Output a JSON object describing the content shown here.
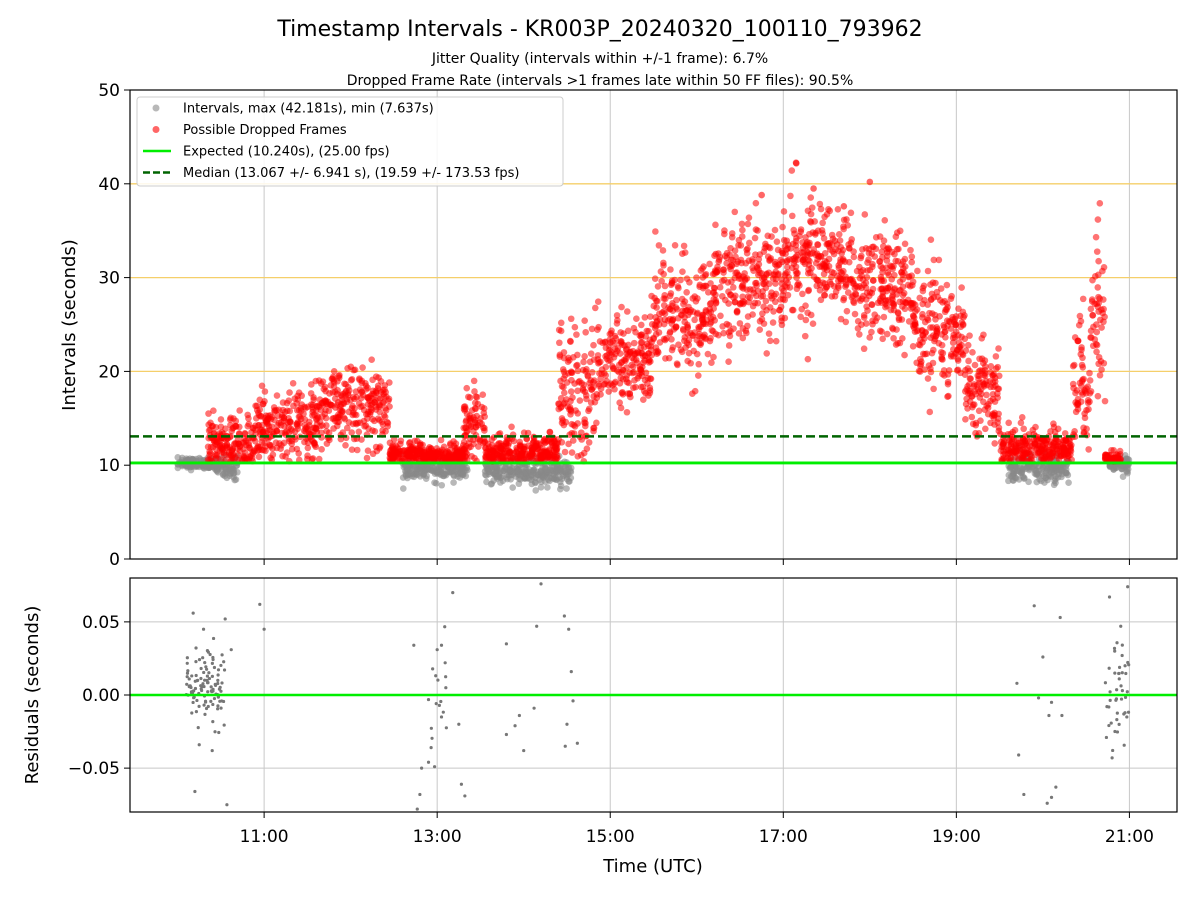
{
  "chart_data": [
    {
      "type": "scatter",
      "title": "Timestamp Intervals - KR003P_20240320_100110_793962",
      "subtitles": [
        "Jitter Quality (intervals within +/-1 frame): 6.7%",
        "Dropped Frame Rate (intervals >1 frames late within 50 FF files): 90.5%"
      ],
      "ylabel": "Intervals (seconds)",
      "xlim_hours": [
        9.45,
        21.55
      ],
      "ylim": [
        0,
        50
      ],
      "yticks": [
        0,
        10,
        20,
        30,
        40,
        50
      ],
      "ytick_labels": [
        "0",
        "10",
        "20",
        "30",
        "40",
        "50"
      ],
      "xticks_hours": [
        11,
        13,
        15,
        17,
        19,
        21
      ],
      "grid": true,
      "reference_bands": [
        20,
        30,
        40
      ],
      "legend_position": "top-left",
      "expected_value": 10.24,
      "median_value": 13.067,
      "series": [
        {
          "name": "Intervals, max (42.181s), min (7.637s)",
          "color": "#888888",
          "role": "all-intervals",
          "segments": [
            {
              "x0": 10.0,
              "x1": 10.45,
              "ymean": 10.2,
              "ysd": 0.3
            },
            {
              "x0": 10.45,
              "x1": 10.7,
              "ymean": 9.8,
              "ysd": 0.6
            },
            {
              "x0": 12.6,
              "x1": 13.35,
              "ymean": 9.6,
              "ysd": 0.6
            },
            {
              "x0": 13.55,
              "x1": 14.55,
              "ymean": 9.3,
              "ysd": 0.7
            },
            {
              "x0": 19.6,
              "x1": 20.3,
              "ymean": 9.6,
              "ysd": 0.7
            },
            {
              "x0": 20.75,
              "x1": 21.0,
              "ymean": 10.2,
              "ysd": 0.5
            }
          ]
        },
        {
          "name": "Possible Dropped Frames",
          "color": "#ff0000",
          "role": "dropped",
          "segments": [
            {
              "x0": 10.35,
              "x1": 10.9,
              "ymean": 12.3,
              "ysd": 1.5
            },
            {
              "x0": 10.9,
              "x1": 11.6,
              "ymean": 14.2,
              "ysd": 2.0
            },
            {
              "x0": 11.6,
              "x1": 12.45,
              "ymean": 16.0,
              "ysd": 2.0
            },
            {
              "x0": 12.45,
              "x1": 13.35,
              "ymean": 11.0,
              "ysd": 0.7
            },
            {
              "x0": 13.3,
              "x1": 13.55,
              "ymean": 14.5,
              "ysd": 1.8
            },
            {
              "x0": 13.55,
              "x1": 14.4,
              "ymean": 11.3,
              "ysd": 1.0
            },
            {
              "x0": 14.4,
              "x1": 14.85,
              "ymean": 18.0,
              "ysd": 3.5
            },
            {
              "x0": 14.85,
              "x1": 15.5,
              "ymean": 21.5,
              "ysd": 2.5
            },
            {
              "x0": 15.5,
              "x1": 16.2,
              "ymean": 26.0,
              "ysd": 3.0
            },
            {
              "x0": 16.2,
              "x1": 17.0,
              "ymean": 29.5,
              "ysd": 3.0
            },
            {
              "x0": 17.0,
              "x1": 17.8,
              "ymean": 31.5,
              "ysd": 3.0
            },
            {
              "x0": 17.8,
              "x1": 18.5,
              "ymean": 29.0,
              "ysd": 3.0
            },
            {
              "x0": 18.5,
              "x1": 19.1,
              "ymean": 24.5,
              "ysd": 3.0
            },
            {
              "x0": 19.1,
              "x1": 19.5,
              "ymean": 18.0,
              "ysd": 2.5
            },
            {
              "x0": 19.5,
              "x1": 20.35,
              "ymean": 11.8,
              "ysd": 1.0
            },
            {
              "x0": 20.35,
              "x1": 20.55,
              "ymean": 18.0,
              "ysd": 4.0
            },
            {
              "x0": 20.55,
              "x1": 20.72,
              "ymean": 26.0,
              "ysd": 4.0
            },
            {
              "x0": 20.72,
              "x1": 20.9,
              "ymean": 10.5,
              "ysd": 0.3
            }
          ]
        },
        {
          "name": "Expected (10.240s), (25.00 fps)",
          "color": "#00ee00",
          "role": "expected-line",
          "y": 10.24
        },
        {
          "name": "Median (13.067 +/- 6.941 s), (19.59 +/- 173.53 fps)",
          "color": "#006400",
          "role": "median-line",
          "y": 13.067
        }
      ]
    },
    {
      "type": "scatter",
      "ylabel": "Residuals (seconds)",
      "xlabel": "Time (UTC)",
      "xlim_hours": [
        9.45,
        21.55
      ],
      "ylim": [
        -0.08,
        0.08
      ],
      "yticks": [
        -0.05,
        0,
        0.05
      ],
      "ytick_labels": [
        "−0.05",
        "0.00",
        "0.05"
      ],
      "xticks_hours": [
        11,
        13,
        15,
        17,
        19,
        21
      ],
      "xtick_labels": [
        "11:00",
        "13:00",
        "15:00",
        "17:00",
        "19:00",
        "21:00"
      ],
      "grid": true,
      "zero_line_color": "#00ee00",
      "series": [
        {
          "name": "residuals",
          "color": "#777777",
          "points": [
            [
              10.18,
              0.056
            ],
            [
              10.2,
              -0.066
            ],
            [
              10.25,
              -0.034
            ],
            [
              10.3,
              0.045
            ],
            [
              10.4,
              -0.038
            ],
            [
              10.55,
              0.052
            ],
            [
              10.57,
              -0.075
            ],
            [
              10.62,
              0.031
            ],
            [
              10.95,
              0.062
            ],
            [
              11.0,
              0.045
            ],
            [
              12.73,
              0.034
            ],
            [
              12.77,
              -0.078
            ],
            [
              12.8,
              -0.068
            ],
            [
              12.82,
              -0.05
            ],
            [
              12.9,
              -0.046
            ],
            [
              12.93,
              -0.036
            ],
            [
              12.97,
              -0.049
            ],
            [
              13.0,
              0.031
            ],
            [
              13.05,
              0.034
            ],
            [
              13.1,
              0.005
            ],
            [
              13.05,
              -0.015
            ],
            [
              13.18,
              0.07
            ],
            [
              13.25,
              -0.02
            ],
            [
              13.28,
              -0.061
            ],
            [
              13.32,
              -0.069
            ],
            [
              13.8,
              0.035
            ],
            [
              13.8,
              -0.027
            ],
            [
              13.9,
              -0.021
            ],
            [
              13.95,
              -0.014
            ],
            [
              14.0,
              -0.038
            ],
            [
              14.12,
              -0.009
            ],
            [
              14.15,
              0.047
            ],
            [
              14.2,
              0.076
            ],
            [
              14.47,
              0.054
            ],
            [
              14.52,
              0.045
            ],
            [
              14.55,
              0.016
            ],
            [
              14.57,
              -0.004
            ],
            [
              14.5,
              -0.02
            ],
            [
              14.48,
              -0.035
            ],
            [
              14.62,
              -0.033
            ],
            [
              19.7,
              0.008
            ],
            [
              19.72,
              -0.041
            ],
            [
              19.78,
              -0.068
            ],
            [
              19.9,
              0.061
            ],
            [
              19.95,
              -0.002
            ],
            [
              20.0,
              0.026
            ],
            [
              20.05,
              -0.074
            ],
            [
              20.1,
              -0.07
            ],
            [
              20.07,
              -0.014
            ],
            [
              20.1,
              -0.005
            ],
            [
              20.2,
              0.053
            ],
            [
              20.22,
              -0.014
            ],
            [
              20.15,
              -0.063
            ],
            [
              20.77,
              0.067
            ],
            [
              20.8,
              -0.043
            ],
            [
              20.83,
              0.03
            ],
            [
              20.9,
              0.047
            ],
            [
              20.98,
              0.074
            ],
            [
              20.95,
              0.02
            ],
            [
              20.97,
              -0.015
            ]
          ],
          "clusters": [
            {
              "x0": 10.1,
              "x1": 10.55,
              "ymean": 0.005,
              "ysd": 0.013,
              "n": 110
            },
            {
              "x0": 12.85,
              "x1": 13.15,
              "ymean": 0.0,
              "ysd": 0.02,
              "n": 14
            },
            {
              "x0": 20.72,
              "x1": 21.0,
              "ymean": 0.0,
              "ysd": 0.018,
              "n": 40
            }
          ]
        }
      ]
    }
  ]
}
